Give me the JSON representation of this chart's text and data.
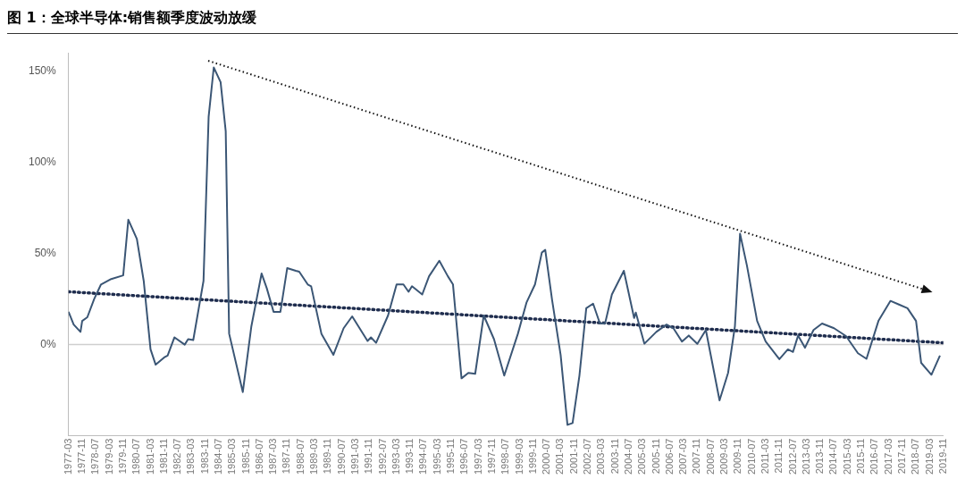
{
  "chart_data": {
    "type": "line",
    "title": "图 1：全球半导体:销售额季度波动放缓",
    "x": [
      "1977-03",
      "1977-06",
      "1977-10",
      "1977-11",
      "1978-02",
      "1978-06",
      "1978-10",
      "1979-04",
      "1979-11",
      "1980-02",
      "1980-07",
      "1980-11",
      "1981-03",
      "1981-06",
      "1981-11",
      "1982-01",
      "1982-05",
      "1982-11",
      "1983-01",
      "1983-04",
      "1983-10",
      "1984-01",
      "1984-04",
      "1984-08",
      "1984-11",
      "1985-01",
      "1985-09",
      "1986-02",
      "1986-08",
      "1986-11",
      "1987-03",
      "1987-07",
      "1987-11",
      "1988-04",
      "1988-06",
      "1988-11",
      "1989-01",
      "1989-07",
      "1990-02",
      "1990-08",
      "1991-01",
      "1991-10",
      "1991-12",
      "1992-03",
      "1992-10",
      "1993-03",
      "1993-07",
      "1993-10",
      "1993-12",
      "1994-06",
      "1994-10",
      "1995-04",
      "1995-09",
      "1995-12",
      "1996-05",
      "1996-09",
      "1997-01",
      "1997-06",
      "1997-12",
      "1998-06",
      "1999-02",
      "1999-07",
      "1999-12",
      "2000-04",
      "2000-06",
      "2000-10",
      "2001-03",
      "2001-07",
      "2001-10",
      "2002-02",
      "2002-06",
      "2002-10",
      "2003-02",
      "2003-05",
      "2003-09",
      "2004-04",
      "2004-10",
      "2004-11",
      "2005-04",
      "2005-11",
      "2006-05",
      "2006-09",
      "2007-02",
      "2007-06",
      "2007-11",
      "2008-04",
      "2008-12",
      "2009-05",
      "2009-09",
      "2009-12",
      "2010-04",
      "2010-10",
      "2011-03",
      "2011-11",
      "2012-04",
      "2012-07",
      "2012-10",
      "2013-02",
      "2013-07",
      "2013-12",
      "2014-07",
      "2015-02",
      "2015-09",
      "2016-02",
      "2016-09",
      "2017-04",
      "2017-09",
      "2018-02",
      "2018-07",
      "2018-10",
      "2019-04",
      "2019-09"
    ],
    "series": [
      {
        "color": "#3b5675",
        "line_style": "solid",
        "values": [
          18,
          11,
          7,
          13,
          15,
          25,
          33,
          36,
          38,
          68.5,
          58,
          35,
          -2.6,
          -11,
          -7,
          -6,
          4,
          0,
          3,
          2.5,
          35,
          125,
          152,
          144,
          117,
          6,
          -26,
          10,
          39,
          31,
          18,
          18,
          42,
          40.5,
          40,
          33,
          32,
          6,
          -5.6,
          9,
          15.5,
          2,
          4,
          1,
          16,
          33,
          33,
          29,
          32,
          27.5,
          37.5,
          46,
          37.5,
          33,
          -18.5,
          -15.5,
          -16,
          16,
          3,
          -17,
          6,
          23,
          33,
          50.5,
          52,
          24.5,
          -5.6,
          -44,
          -43,
          -17,
          20,
          22.5,
          11.6,
          11.6,
          27.5,
          40.5,
          14.6,
          17.6,
          0.5,
          7,
          11,
          9,
          1.7,
          5,
          0.4,
          8,
          -30.6,
          -15.5,
          10,
          60.8,
          43.5,
          13,
          1.7,
          -8,
          -2.6,
          -4,
          5,
          -1.7,
          8,
          11.6,
          9,
          4.7,
          -4.7,
          -7.8,
          13,
          24,
          22,
          20,
          13,
          -10,
          -16.5,
          -6
        ]
      },
      {
        "color": "#1f2d4e",
        "line_style": "dotted",
        "x": [
          "1977-03",
          "2019-11"
        ],
        "values": [
          29,
          1
        ]
      }
    ],
    "xlim": [
      "1977-03",
      "2019-11"
    ],
    "xticks": [
      "1977-03",
      "1977-11",
      "1978-07",
      "1979-03",
      "1979-11",
      "1980-07",
      "1981-03",
      "1981-11",
      "1982-07",
      "1983-03",
      "1983-11",
      "1984-07",
      "1985-03",
      "1985-11",
      "1986-07",
      "1987-03",
      "1987-11",
      "1988-07",
      "1989-03",
      "1989-11",
      "1990-07",
      "1991-03",
      "1991-11",
      "1992-07",
      "1993-03",
      "1993-11",
      "1994-07",
      "1995-03",
      "1995-11",
      "1996-07",
      "1997-03",
      "1997-11",
      "1998-07",
      "1999-03",
      "1999-11",
      "2000-07",
      "2001-03",
      "2001-11",
      "2002-07",
      "2003-03",
      "2003-11",
      "2004-07",
      "2005-03",
      "2005-11",
      "2006-07",
      "2007-03",
      "2007-11",
      "2008-07",
      "2009-03",
      "2009-11",
      "2010-07",
      "2011-03",
      "2011-11",
      "2012-07",
      "2013-03",
      "2013-11",
      "2014-07",
      "2015-03",
      "2015-11",
      "2016-07",
      "2017-03",
      "2017-11",
      "2018-07",
      "2019-03",
      "2019-11"
    ],
    "ylim": [
      -50,
      160
    ],
    "yticks": [
      {
        "value": 0,
        "label": "0%"
      },
      {
        "value": 50,
        "label": "50%"
      },
      {
        "value": 100,
        "label": "100%"
      },
      {
        "value": 150,
        "label": "150%"
      }
    ],
    "ref_lines": [
      {
        "axis": "y",
        "value": 0,
        "color": "#cfcfcf",
        "line_style": "solid"
      }
    ],
    "grid": false,
    "legend": false,
    "marker": "none"
  }
}
